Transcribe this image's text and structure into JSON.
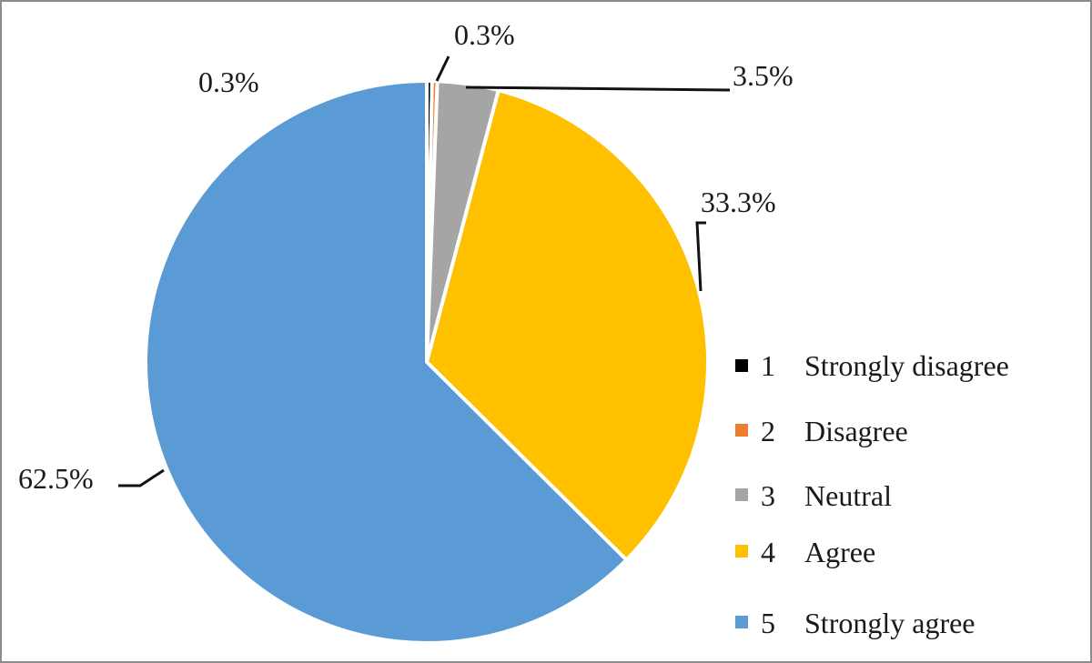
{
  "chart_data": {
    "type": "pie",
    "title": "",
    "slices": [
      {
        "code": "1",
        "label": "Strongly disagree",
        "value": 0.3,
        "display": "0.3%",
        "color": "#000000"
      },
      {
        "code": "2",
        "label": "Disagree",
        "value": 0.3,
        "display": "0.3%",
        "color": "#ed7d31"
      },
      {
        "code": "3",
        "label": "Neutral",
        "value": 3.5,
        "display": "3.5%",
        "color": "#a5a5a5"
      },
      {
        "code": "4",
        "label": "Agree",
        "value": 33.3,
        "display": "33.3%",
        "color": "#ffc000"
      },
      {
        "code": "5",
        "label": "Strongly agree",
        "value": 62.5,
        "display": "62.5%",
        "color": "#5b9bd5"
      }
    ],
    "legend_position": "right",
    "start_angle": "12 o'clock",
    "direction": "clockwise"
  }
}
